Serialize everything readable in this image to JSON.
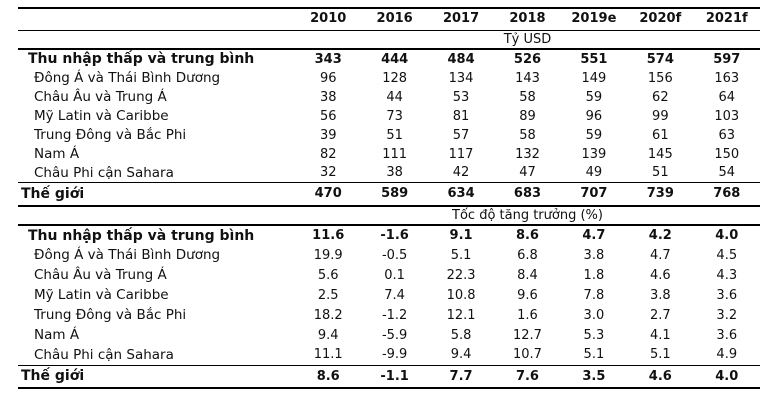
{
  "colors": {
    "background": "#ffffff",
    "text": "#111111",
    "rule": "#000000"
  },
  "table": {
    "corner": "",
    "columns": [
      "2010",
      "2016",
      "2017",
      "2018",
      "2019e",
      "2020f",
      "2021f"
    ],
    "bands": {
      "usd": "Tỷ USD",
      "growth": "Tốc độ tăng trưởng (%)"
    },
    "usd": {
      "rows": [
        {
          "label": "Thu nhập thấp và trung bình",
          "values": [
            "343",
            "444",
            "484",
            "526",
            "551",
            "574",
            "597"
          ]
        },
        {
          "label": "Đông Á và Thái Bình Dương",
          "values": [
            "96",
            "128",
            "134",
            "143",
            "149",
            "156",
            "163"
          ]
        },
        {
          "label": "Châu Âu và Trung Á",
          "values": [
            "38",
            "44",
            "53",
            "58",
            "59",
            "62",
            "64"
          ]
        },
        {
          "label": "Mỹ Latin và Caribbe",
          "values": [
            "56",
            "73",
            "81",
            "89",
            "96",
            "99",
            "103"
          ]
        },
        {
          "label": "Trung Đông và Bắc Phi",
          "values": [
            "39",
            "51",
            "57",
            "58",
            "59",
            "61",
            "63"
          ]
        },
        {
          "label": "Nam Á",
          "values": [
            "82",
            "111",
            "117",
            "132",
            "139",
            "145",
            "150"
          ]
        },
        {
          "label": "Châu Phi cận Sahara",
          "values": [
            "32",
            "38",
            "42",
            "47",
            "49",
            "51",
            "54"
          ]
        },
        {
          "label": "Thế giới",
          "values": [
            "470",
            "589",
            "634",
            "683",
            "707",
            "739",
            "768"
          ]
        }
      ]
    },
    "growth": {
      "rows": [
        {
          "label": "Thu nhập thấp và trung bình",
          "values": [
            "11.6",
            "-1.6",
            "9.1",
            "8.6",
            "4.7",
            "4.2",
            "4.0"
          ]
        },
        {
          "label": "Đông Á và Thái Bình Dương",
          "values": [
            "19.9",
            "-0.5",
            "5.1",
            "6.8",
            "3.8",
            "4.7",
            "4.5"
          ]
        },
        {
          "label": "Châu Âu và Trung Á",
          "values": [
            "5.6",
            "0.1",
            "22.3",
            "8.4",
            "1.8",
            "4.6",
            "4.3"
          ]
        },
        {
          "label": "Mỹ Latin và Caribbe",
          "values": [
            "2.5",
            "7.4",
            "10.8",
            "9.6",
            "7.8",
            "3.8",
            "3.6"
          ]
        },
        {
          "label": "Trung Đông và Bắc Phi",
          "values": [
            "18.2",
            "-1.2",
            "12.1",
            "1.6",
            "3.0",
            "2.7",
            "3.2"
          ]
        },
        {
          "label": "Nam Á",
          "values": [
            "9.4",
            "-5.9",
            "5.8",
            "12.7",
            "5.3",
            "4.1",
            "3.6"
          ]
        },
        {
          "label": "Châu Phi cận Sahara",
          "values": [
            "11.1",
            "-9.9",
            "9.4",
            "10.7",
            "5.1",
            "5.1",
            "4.9"
          ]
        },
        {
          "label": "Thế giới",
          "values": [
            "8.6",
            "-1.1",
            "7.7",
            "7.6",
            "3.5",
            "4.6",
            "4.0"
          ]
        }
      ]
    }
  }
}
